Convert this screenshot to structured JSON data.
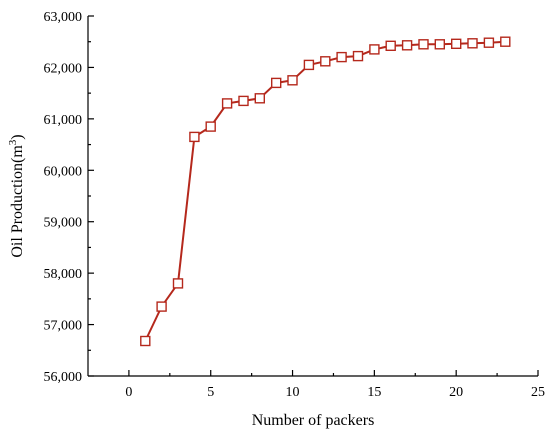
{
  "chart_data": {
    "type": "line",
    "title": "",
    "xlabel": "Number of packers",
    "ylabel": "Oil Production(m³)",
    "ylabel_base": "Oil Production(m",
    "ylabel_sup": "3",
    "ylabel_close": ")",
    "xlim": [
      -2.5,
      25
    ],
    "ylim": [
      56000,
      63000
    ],
    "xticks": [
      0,
      5,
      10,
      15,
      20,
      25
    ],
    "xtick_labels": [
      "0",
      "5",
      "10",
      "15",
      "20",
      "25"
    ],
    "yticks": [
      56000,
      57000,
      58000,
      59000,
      60000,
      61000,
      62000,
      63000
    ],
    "ytick_labels": [
      "56,000",
      "57,000",
      "58,000",
      "59,000",
      "60,000",
      "61,000",
      "62,000",
      "63,000"
    ],
    "grid": false,
    "legend": "none",
    "line_color": "#b5281c",
    "marker": "square",
    "series": [
      {
        "x": [
          1,
          2,
          3,
          4,
          5,
          6,
          7,
          8,
          9,
          10,
          11,
          12,
          13,
          14,
          15,
          16,
          17,
          18,
          19,
          20,
          21,
          22,
          23
        ],
        "y": [
          56680,
          57350,
          57800,
          60650,
          60850,
          61300,
          61350,
          61400,
          61700,
          61750,
          62050,
          62120,
          62200,
          62220,
          62350,
          62420,
          62430,
          62450,
          62450,
          62460,
          62470,
          62480,
          62500
        ]
      }
    ]
  }
}
